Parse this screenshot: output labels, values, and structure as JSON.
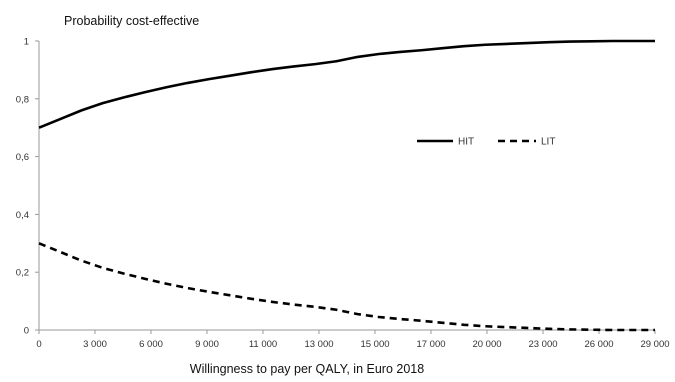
{
  "chart_data": {
    "type": "line",
    "ylabel": "Probability cost-effective",
    "xlabel": "Willingness to pay per QALY, in Euro 2018",
    "x": [
      0,
      1000,
      2000,
      3000,
      4000,
      5000,
      6000,
      7000,
      8000,
      9000,
      10000,
      11000,
      12000,
      13000,
      14000,
      15000,
      16000,
      17000,
      18000,
      19000,
      20000,
      21000,
      22000,
      23000,
      24000,
      25000,
      26000,
      27000,
      28000,
      29000
    ],
    "x_tick_labels": [
      "0",
      "3 000",
      "6 000",
      "9 000",
      "11 000",
      "13 000",
      "15 000",
      "17 000",
      "20 000",
      "23 000",
      "26 000",
      "29 000"
    ],
    "y_tick_labels": [
      "0",
      "0,2",
      "0,4",
      "0,6",
      "0,8",
      "1"
    ],
    "ylim": [
      0,
      1
    ],
    "series": [
      {
        "name": "HIT",
        "style": "solid",
        "color": "#000000",
        "values": [
          0.7,
          0.73,
          0.76,
          0.785,
          0.805,
          0.823,
          0.84,
          0.855,
          0.868,
          0.88,
          0.892,
          0.903,
          0.912,
          0.92,
          0.93,
          0.945,
          0.955,
          0.962,
          0.968,
          0.975,
          0.982,
          0.987,
          0.99,
          0.993,
          0.996,
          0.998,
          0.999,
          1.0,
          1.0,
          1.0
        ]
      },
      {
        "name": "LIT",
        "style": "dashed",
        "color": "#000000",
        "values": [
          0.3,
          0.27,
          0.24,
          0.215,
          0.195,
          0.177,
          0.16,
          0.145,
          0.132,
          0.12,
          0.108,
          0.097,
          0.088,
          0.08,
          0.07,
          0.055,
          0.045,
          0.038,
          0.032,
          0.025,
          0.018,
          0.013,
          0.01,
          0.007,
          0.004,
          0.002,
          0.001,
          0.0,
          0.0,
          0.0
        ]
      }
    ],
    "legend_position": "center-right",
    "grid": false
  }
}
